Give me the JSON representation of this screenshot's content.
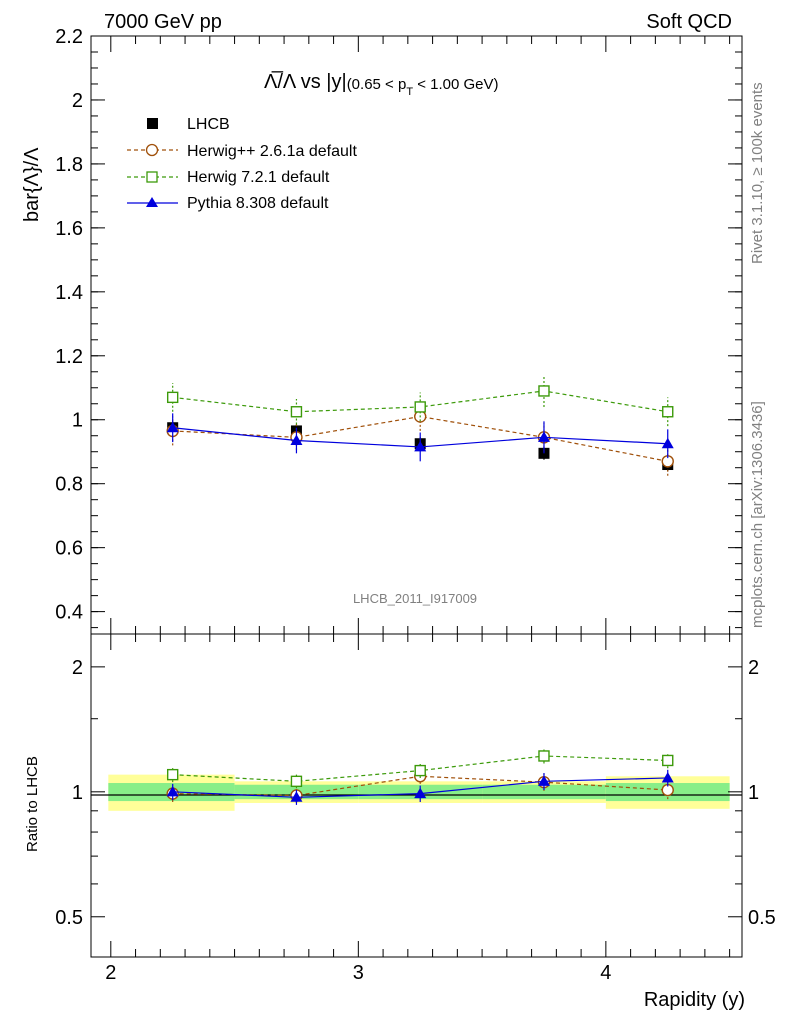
{
  "header": {
    "left": "7000 GeV pp",
    "right": "Soft QCD"
  },
  "side_labels": {
    "rivet": "Rivet 3.1.10, ≥ 100k events",
    "mcplots": "mcplots.cern.ch [arXiv:1306.3436]"
  },
  "colors": {
    "lhcb": "#000000",
    "herwigpp": "#a0500a",
    "herwig7": "#3c9a0a",
    "pythia": "#0000dd",
    "band_inner": "#88ee88",
    "band_outer": "#ffff99"
  },
  "chart_data": [
    {
      "type": "scatter",
      "title_main": "Λ̅/Λ vs |y|",
      "title_range": "(0.65 < p",
      "title_sub": "T",
      "title_end": " < 1.00 GeV)",
      "ylabel": "bar{Λ}/Λ",
      "watermark": "LHCB_2011_I917009",
      "xlim": [
        1.92,
        4.55
      ],
      "ylim": [
        0.33,
        2.2
      ],
      "yticks": [
        0.4,
        0.6,
        0.8,
        1,
        1.2,
        1.4,
        1.6,
        1.8,
        2,
        2.2
      ],
      "ytick_labels": [
        "0.4",
        "0.6",
        "0.8",
        "1",
        "1.2",
        "1.4",
        "1.6",
        "1.8",
        "2",
        "2.2"
      ],
      "legend_position": "top-left",
      "x": [
        2.25,
        2.75,
        3.25,
        3.75,
        4.25
      ],
      "series": [
        {
          "name": "LHCB",
          "marker": "filled-square",
          "line": "none",
          "values": [
            0.975,
            0.965,
            0.925,
            0.895,
            0.86
          ],
          "errors": [
            0.02,
            0.02,
            0.02,
            0.02,
            0.02
          ]
        },
        {
          "name": "Herwig++ 2.6.1a default",
          "marker": "open-circle",
          "line": "dashed",
          "values": [
            0.965,
            0.945,
            1.01,
            0.945,
            0.87
          ],
          "errors": [
            0.045,
            0.04,
            0.045,
            0.045,
            0.045
          ]
        },
        {
          "name": "Herwig 7.2.1 default",
          "marker": "open-square",
          "line": "dashed",
          "values": [
            1.07,
            1.025,
            1.04,
            1.09,
            1.025
          ],
          "errors": [
            0.045,
            0.04,
            0.045,
            0.05,
            0.045
          ]
        },
        {
          "name": "Pythia 8.308 default",
          "marker": "filled-triangle",
          "line": "solid",
          "values": [
            0.975,
            0.935,
            0.915,
            0.945,
            0.925
          ],
          "errors": [
            0.045,
            0.04,
            0.045,
            0.05,
            0.045
          ]
        }
      ]
    },
    {
      "type": "scatter",
      "ylabel": "Ratio to LHCB",
      "xlabel": "Rapidity (y)",
      "log_y": true,
      "xlim": [
        1.92,
        4.55
      ],
      "ylim": [
        0.4,
        2.4
      ],
      "xticks": [
        2,
        3,
        4
      ],
      "xtick_labels": [
        "2",
        "3",
        "4"
      ],
      "yticks": [
        0.5,
        1,
        2
      ],
      "ytick_labels": [
        "0.5",
        "1",
        "2"
      ],
      "x": [
        2.25,
        2.75,
        3.25,
        3.75,
        4.25
      ],
      "bands": {
        "bins": [
          [
            1.99,
            2.5
          ],
          [
            2.5,
            3.0
          ],
          [
            3.0,
            3.5
          ],
          [
            3.5,
            4.0
          ],
          [
            4.0,
            4.5
          ]
        ],
        "inner": [
          [
            0.95,
            1.05
          ],
          [
            0.96,
            1.04
          ],
          [
            0.96,
            1.04
          ],
          [
            0.96,
            1.04
          ],
          [
            0.95,
            1.05
          ]
        ],
        "outer": [
          [
            0.9,
            1.1
          ],
          [
            0.94,
            1.06
          ],
          [
            0.94,
            1.06
          ],
          [
            0.94,
            1.06
          ],
          [
            0.91,
            1.09
          ]
        ]
      },
      "series": [
        {
          "name": "Herwig++ 2.6.1a default",
          "marker": "open-circle",
          "line": "dashed",
          "values": [
            0.99,
            0.98,
            1.09,
            1.055,
            1.01
          ],
          "errors": [
            0.045,
            0.04,
            0.045,
            0.05,
            0.05
          ]
        },
        {
          "name": "Herwig 7.2.1 default",
          "marker": "open-square",
          "line": "dashed",
          "values": [
            1.1,
            1.06,
            1.125,
            1.22,
            1.19
          ],
          "errors": [
            0.045,
            0.04,
            0.045,
            0.05,
            0.05
          ]
        },
        {
          "name": "Pythia 8.308 default",
          "marker": "filled-triangle",
          "line": "solid",
          "values": [
            1.0,
            0.97,
            0.99,
            1.06,
            1.08
          ],
          "errors": [
            0.045,
            0.04,
            0.045,
            0.05,
            0.05
          ]
        }
      ]
    }
  ]
}
